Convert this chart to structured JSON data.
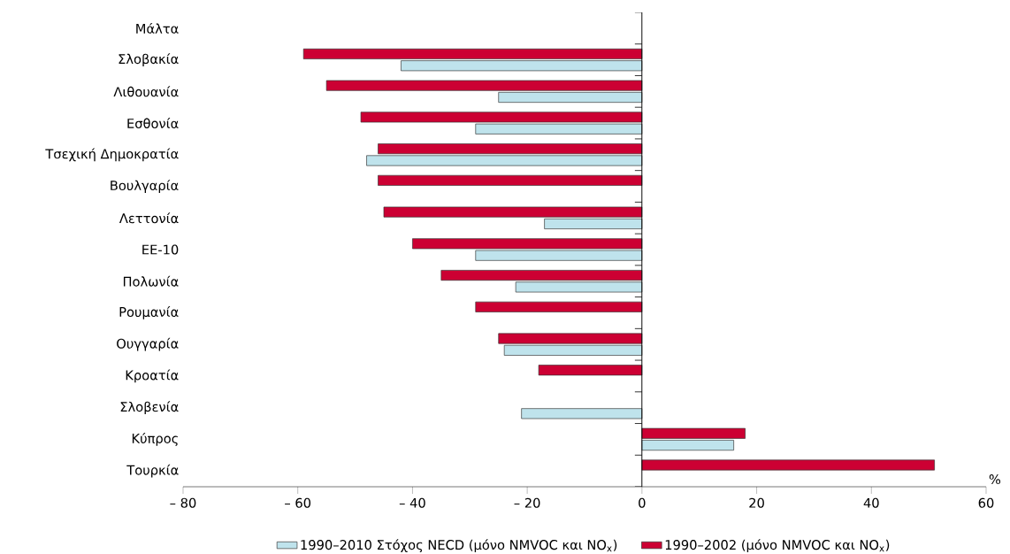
{
  "chart_data": {
    "type": "bar",
    "orientation": "horizontal",
    "xlabel": "%",
    "categories": [
      "Μάλτα",
      "Σλοβακία",
      "Λιθουανία",
      "Εσθονία",
      "Τσεχική Δημοκρατία",
      "Βουλγαρία",
      "Λεττονία",
      "ΕΕ-10",
      "Πολωνία",
      "Ρουμανία",
      "Ουγγαρία",
      "Κροατία",
      "Σλοβενία",
      "Κύπρος",
      "Τουρκία"
    ],
    "series": [
      {
        "name": "1990–2010 Στόχος NECD (μόνο NMVOC και NO$_{x}$)",
        "color": "#bfe3ec",
        "values": [
          null,
          -42,
          -25,
          -29,
          -48,
          null,
          -17,
          -29,
          -22,
          null,
          -24,
          null,
          -21,
          16,
          null
        ]
      },
      {
        "name": "1990–2002 (μόνο NMVOC και NO$_{x}$)",
        "color": "#cc0033",
        "values": [
          null,
          -59,
          -55,
          -49,
          -46,
          -46,
          -45,
          -40,
          -35,
          -29,
          -25,
          -18,
          null,
          18,
          51
        ]
      }
    ],
    "xlim": [
      -80,
      60
    ],
    "xticks": [
      {
        "value": -80,
        "label": "– 80"
      },
      {
        "value": -60,
        "label": "– 60"
      },
      {
        "value": -40,
        "label": "– 40"
      },
      {
        "value": -20,
        "label": "– 20"
      },
      0,
      20,
      40,
      60
    ],
    "ref_lines": [
      {
        "axis": "x",
        "value": 0,
        "color": "#000000"
      }
    ],
    "legend": "bottom",
    "grid": false
  }
}
